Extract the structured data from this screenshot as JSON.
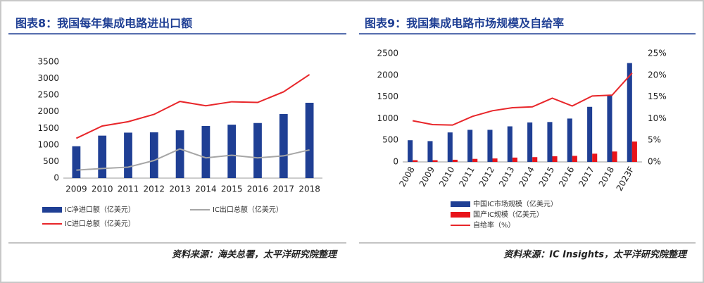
{
  "chart_data": [
    {
      "type": "combo",
      "title": "图表8：我国每年集成电路进出口额",
      "source": "资料来源：海关总署，太平洋研究院整理",
      "categories": [
        "2009",
        "2010",
        "2011",
        "2012",
        "2013",
        "2014",
        "2015",
        "2016",
        "2017",
        "2018"
      ],
      "ylim": [
        0,
        3500
      ],
      "yticks": [
        0,
        500,
        1000,
        1500,
        2000,
        2500,
        3000,
        3500
      ],
      "grid": false,
      "series": [
        {
          "name": "IC净进口额（亿美元）",
          "kind": "bar",
          "color": "#1f3f94",
          "values": [
            960,
            1280,
            1370,
            1380,
            1440,
            1570,
            1610,
            1660,
            1930,
            2270
          ]
        },
        {
          "name": "IC出口总额（亿美元）",
          "kind": "line",
          "color": "#a6a6a6",
          "values": [
            240,
            290,
            330,
            530,
            880,
            610,
            690,
            610,
            670,
            850
          ]
        },
        {
          "name": "IC进口总额（亿美元）",
          "kind": "line",
          "color": "#e8262a",
          "values": [
            1200,
            1570,
            1700,
            1920,
            2310,
            2180,
            2300,
            2280,
            2600,
            3120
          ]
        }
      ]
    },
    {
      "type": "combo",
      "title": "图表9：我国集成电路市场规模及自给率",
      "source": "资料来源：IC Insights，太平洋研究院整理",
      "categories": [
        "2008",
        "2009",
        "2010",
        "2011",
        "2012",
        "2013",
        "2014",
        "2015",
        "2016",
        "2017",
        "2018",
        "2023F"
      ],
      "ylim": [
        0,
        2500
      ],
      "yticks": [
        0,
        500,
        1000,
        1500,
        2000,
        2500
      ],
      "y2lim": [
        0,
        25
      ],
      "y2ticks": [
        {
          "value": 0,
          "label": "0%"
        },
        {
          "value": 5,
          "label": "5%"
        },
        {
          "value": 10,
          "label": "10%"
        },
        {
          "value": 15,
          "label": "15%"
        },
        {
          "value": 20,
          "label": "20%"
        },
        {
          "value": 25,
          "label": "25%"
        }
      ],
      "grid": false,
      "series": [
        {
          "name": "中国IC市场规模（亿美元）",
          "kind": "bar",
          "color": "#1f3f94",
          "values": [
            500,
            480,
            680,
            740,
            740,
            820,
            910,
            920,
            1000,
            1270,
            1550,
            2280
          ]
        },
        {
          "name": "国产IC规模（亿美元）",
          "kind": "bar",
          "color": "#e8141a",
          "values": [
            40,
            40,
            50,
            70,
            80,
            100,
            110,
            130,
            140,
            190,
            240,
            470
          ]
        },
        {
          "name": "自给率（%）",
          "kind": "line",
          "axis": "y2",
          "color": "#e8262a",
          "values": [
            9.5,
            8.6,
            8.5,
            10.5,
            11.8,
            12.5,
            12.7,
            14.7,
            12.9,
            15.2,
            15.4,
            20.5
          ]
        }
      ]
    }
  ]
}
